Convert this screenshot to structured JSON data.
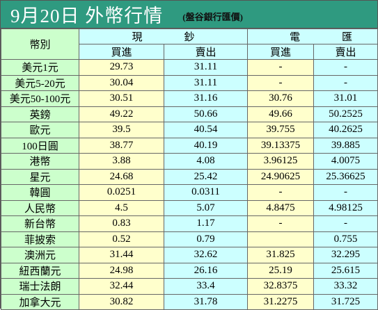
{
  "header": {
    "title": "9月20日 外幣行情",
    "source": "(盤谷銀行匯價)"
  },
  "table": {
    "columns": {
      "currency": "幣別",
      "cash": "現鈔",
      "wire": "電匯",
      "buy": "買進",
      "sell": "賣出"
    },
    "rows": [
      [
        "美元1元",
        29.73,
        31.11,
        "-",
        "-"
      ],
      [
        "美元5-20元",
        30.04,
        31.11,
        "-",
        "-"
      ],
      [
        "美元50-100元",
        30.51,
        31.16,
        30.76,
        31.01
      ],
      [
        "英鎊",
        49.22,
        50.66,
        49.66,
        50.2525
      ],
      [
        "歐元",
        39.5,
        40.54,
        39.755,
        40.2625
      ],
      [
        "100日圓",
        38.77,
        40.19,
        39.13375,
        39.885
      ],
      [
        "港幣",
        3.88,
        4.08,
        3.96125,
        4.0075
      ],
      [
        "星元",
        24.68,
        25.42,
        24.90625,
        25.36625
      ],
      [
        "韓圓",
        0.0251,
        0.0311,
        "-",
        "-"
      ],
      [
        "人民幣",
        4.5,
        5.07,
        4.8475,
        4.98125
      ],
      [
        "新台幣",
        0.83,
        1.17,
        "-",
        "-"
      ],
      [
        "菲披索",
        0.52,
        0.79,
        null,
        0.755
      ],
      [
        "澳洲元",
        31.44,
        32.62,
        31.825,
        32.295
      ],
      [
        "紐西蘭元",
        24.98,
        26.16,
        25.19,
        25.615
      ],
      [
        "瑞士法朗",
        32.44,
        33.4,
        32.8375,
        33.32
      ],
      [
        "加拿大元",
        30.82,
        31.78,
        31.2275,
        31.725
      ]
    ]
  }
}
